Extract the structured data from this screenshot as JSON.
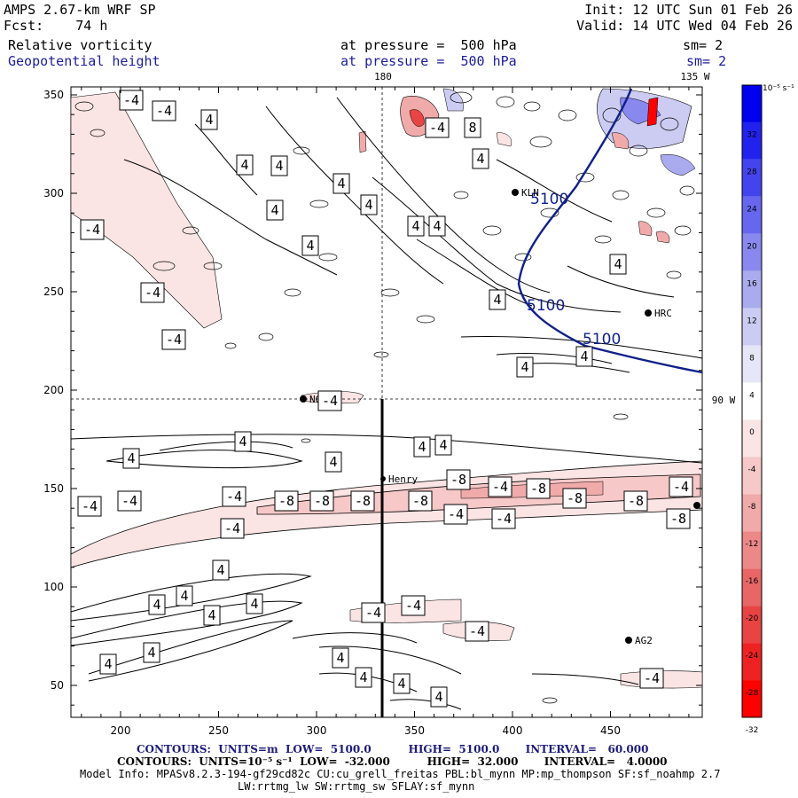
{
  "header": {
    "model": "AMPS 2.67-km WRF SP",
    "forecast_label": "Fcst:",
    "forecast_hours": "74 h",
    "init": "Init: 12 UTC Sun 01 Feb 26",
    "valid": "Valid: 14 UTC Wed 04 Feb 26",
    "field1": "Relative vorticity",
    "field1_level": "at pressure =  500 hPa",
    "field1_sm": "sm= 2",
    "field2": "Geopotential height",
    "field2_level": "at pressure =  500 hPa",
    "field2_sm": "sm= 2"
  },
  "map": {
    "lon_labels": [
      "180",
      "135 W",
      "90 W"
    ],
    "x_ticks": [
      "200",
      "250",
      "300",
      "350",
      "400",
      "450"
    ],
    "y_ticks": [
      "50",
      "100",
      "150",
      "200",
      "250",
      "300",
      "350"
    ],
    "stations": [
      "NGG",
      "KLN",
      "HRC",
      "Henry",
      "AG2"
    ],
    "height_labels": [
      "5100",
      "5100",
      "5100"
    ]
  },
  "colorbar": {
    "units": "10⁻⁵ s⁻¹",
    "ticks": [
      "32",
      "28",
      "24",
      "20",
      "16",
      "12",
      "8",
      "4",
      "0",
      "-4",
      "-8",
      "-12",
      "-16",
      "-20",
      "-24",
      "-28",
      "-32"
    ],
    "colors": [
      "#0000ee",
      "#2222ee",
      "#4444ee",
      "#6666ee",
      "#8888ee",
      "#aaaaee",
      "#ccccf2",
      "#e6e6f8",
      "#ffffff",
      "#fbe4e4",
      "#f6c8c8",
      "#f0aaaa",
      "#ec8888",
      "#e86666",
      "#e84444",
      "#ee2222",
      "#ff0000"
    ]
  },
  "footer": {
    "line1": "CONTOURS:  UNITS=m  LOW=  5100.0          HIGH=  5100.0       INTERVAL=   60.000",
    "line2": "CONTOURS:  UNITS=10⁻⁵ s⁻¹  LOW=  -32.000          HIGH=  32.000       INTERVAL=   4.0000",
    "line3": "Model Info: MPASv8.2.3-194-gf29cd82c CU:cu_grell_freitas PBL:bl_mynn MP:mp_thompson SF:sf_noahmp 2.7",
    "line4": "LW:rrtmg_lw SW:rrtmg_sw SFLAY:sf_mynn"
  },
  "contour_labels": {
    "neg4": "-4",
    "neg8": "-8",
    "pos4": "4",
    "pos8": "8"
  }
}
